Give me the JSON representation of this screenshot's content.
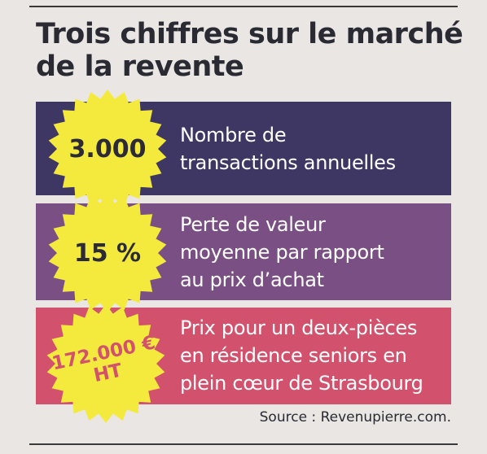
{
  "title": {
    "line1": "Trois chiffres sur le marché",
    "line2": "de la revente"
  },
  "stats": [
    {
      "value_lines": [
        "3.000"
      ],
      "label_lines": [
        "Nombre de",
        "transactions annuelles"
      ]
    },
    {
      "value_lines": [
        "15 %"
      ],
      "label_lines": [
        "Perte de valeur",
        "moyenne par rapport",
        "au prix d’achat"
      ]
    },
    {
      "value_lines": [
        "172.000 €",
        "HT"
      ],
      "label_lines": [
        "Prix pour un deux-pièces",
        "en résidence seniors en",
        "plein cœur de Strasbourg"
      ]
    }
  ],
  "source": "Source : Revenupierre.com.",
  "colors": {
    "band_1": "#3e3764",
    "band_2": "#7a4f84",
    "band_3": "#d2516c",
    "seal": "#f4ea3d",
    "background": "#e9e6e3"
  }
}
